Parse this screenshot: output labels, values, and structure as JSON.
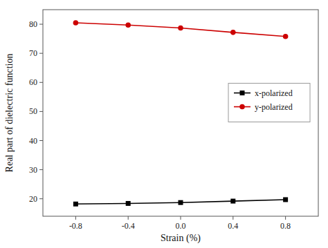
{
  "chart_data": {
    "type": "line",
    "x_label": "Strain (%)",
    "y_label": "Real part of dielectric function",
    "x": [
      -0.8,
      -0.4,
      0.0,
      0.4,
      0.8
    ],
    "series": [
      {
        "name": "x-polarized",
        "color": "#000000",
        "marker": "square",
        "values": [
          18.2,
          18.4,
          18.7,
          19.2,
          19.7
        ]
      },
      {
        "name": "y-polarized",
        "color": "#cc0000",
        "marker": "circle",
        "values": [
          80.5,
          79.7,
          78.7,
          77.2,
          75.8
        ]
      }
    ],
    "xlim": [
      -1.05,
      1.05
    ],
    "ylim": [
      14,
      85
    ],
    "xticks": [
      -0.8,
      -0.4,
      {
        "value": 0.0,
        "label": "0.0"
      },
      0.4,
      0.8
    ],
    "yticks": [
      20,
      30,
      40,
      50,
      60,
      70,
      80
    ],
    "grid": false,
    "legend": "right"
  }
}
